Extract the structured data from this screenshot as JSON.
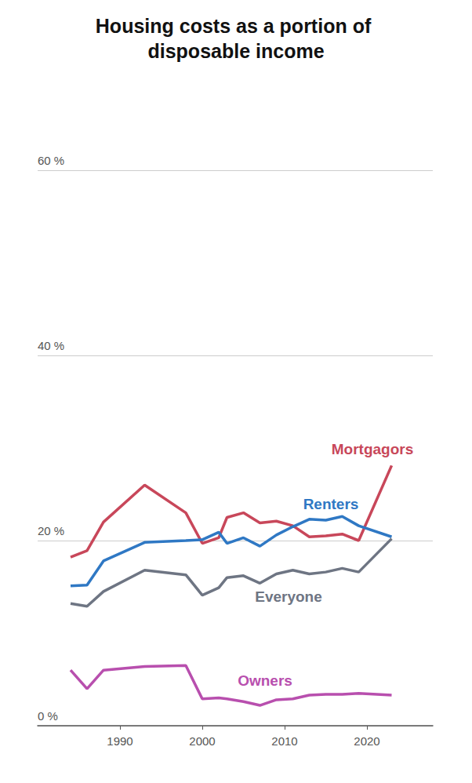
{
  "chart_data": {
    "type": "line",
    "title": "Housing costs as a portion of disposable income",
    "x": [
      1984,
      1986,
      1988,
      1993,
      1998,
      2000,
      2002,
      2003,
      2005,
      2007,
      2009,
      2011,
      2013,
      2015,
      2017,
      2019,
      2023
    ],
    "xlim": [
      1980,
      2028
    ],
    "xticks": [
      1990,
      2000,
      2010,
      2020
    ],
    "ylim": [
      0,
      60
    ],
    "yticks": [
      {
        "value": 0,
        "label": "0 %"
      },
      {
        "value": 20,
        "label": "20 %"
      },
      {
        "value": 40,
        "label": "40 %"
      },
      {
        "value": 60,
        "label": "60 %"
      }
    ],
    "grid": true,
    "series": [
      {
        "name": "Mortgagors",
        "color": "#c8475a",
        "values": [
          18.2,
          18.9,
          22.0,
          26.0,
          23.0,
          19.7,
          20.3,
          22.5,
          23.0,
          21.9,
          22.1,
          21.6,
          20.4,
          20.5,
          20.7,
          20.0,
          28.1
        ]
      },
      {
        "name": "Renters",
        "color": "#2f78c4",
        "values": [
          15.1,
          15.2,
          17.8,
          19.8,
          20.0,
          20.1,
          20.9,
          19.7,
          20.3,
          19.4,
          20.6,
          21.5,
          22.3,
          22.2,
          22.6,
          21.6,
          20.4
        ]
      },
      {
        "name": "Everyone",
        "color": "#6e7583",
        "values": [
          13.2,
          12.9,
          14.5,
          16.8,
          16.3,
          14.1,
          14.9,
          16.0,
          16.2,
          15.4,
          16.4,
          16.8,
          16.4,
          16.6,
          17.0,
          16.6,
          20.2
        ]
      },
      {
        "name": "Owners",
        "color": "#b84fae",
        "values": [
          6.0,
          4.0,
          6.0,
          6.4,
          6.5,
          2.9,
          3.0,
          2.9,
          2.6,
          2.2,
          2.8,
          2.9,
          3.3,
          3.4,
          3.4,
          3.5,
          3.3
        ]
      }
    ]
  }
}
